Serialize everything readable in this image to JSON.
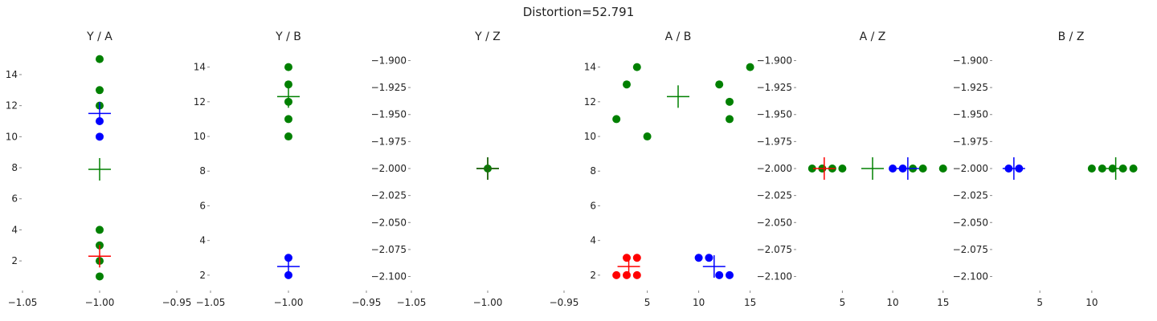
{
  "figure": {
    "title": "Distortion=52.791"
  },
  "chart_data": {
    "type": "scatter",
    "title": "Distortion=52.791",
    "grid": false,
    "legend": "none",
    "colors": {
      "red": "#ff0000",
      "blue": "#0000ff",
      "green": "#008000"
    },
    "panels": [
      {
        "title": "Y / A",
        "xlim": [
          -1.05,
          -0.95
        ],
        "ylim": [
          0.3,
          15.6
        ],
        "xticks": [
          -1.05,
          -1.0,
          -0.95
        ],
        "xtick_labels": [
          "−1.05",
          "−1.00",
          "−0.95"
        ],
        "yticks": [
          2,
          4,
          6,
          8,
          10,
          12,
          14
        ],
        "ytick_labels": [
          "2",
          "4",
          "6",
          "8",
          "10",
          "12",
          "14"
        ],
        "points": [
          {
            "x": -1.0,
            "y": 15,
            "color": "green"
          },
          {
            "x": -1.0,
            "y": 13,
            "color": "green"
          },
          {
            "x": -1.0,
            "y": 12,
            "color": "green"
          },
          {
            "x": -1.0,
            "y": 4,
            "color": "green"
          },
          {
            "x": -1.0,
            "y": 3,
            "color": "green"
          },
          {
            "x": -1.0,
            "y": 2,
            "color": "green"
          },
          {
            "x": -1.0,
            "y": 1,
            "color": "green"
          },
          {
            "x": -1.0,
            "y": 11,
            "color": "blue"
          },
          {
            "x": -1.0,
            "y": 10,
            "color": "blue"
          }
        ],
        "centroids": [
          {
            "x": -1.0,
            "y": 11.5,
            "color": "blue"
          },
          {
            "x": -1.0,
            "y": 7.9,
            "color": "green"
          },
          {
            "x": -1.0,
            "y": 2.3,
            "color": "red"
          }
        ]
      },
      {
        "title": "Y / B",
        "xlim": [
          -1.05,
          -0.95
        ],
        "ylim": [
          1.3,
          15.0
        ],
        "xticks": [
          -1.05,
          -1.0,
          -0.95
        ],
        "xtick_labels": [
          "−1.05",
          "−1.00",
          "−0.95"
        ],
        "yticks": [
          2,
          4,
          6,
          8,
          10,
          12,
          14
        ],
        "ytick_labels": [
          "2",
          "4",
          "6",
          "8",
          "10",
          "12",
          "14"
        ],
        "points": [
          {
            "x": -1.0,
            "y": 14,
            "color": "green"
          },
          {
            "x": -1.0,
            "y": 13,
            "color": "green"
          },
          {
            "x": -1.0,
            "y": 12,
            "color": "green"
          },
          {
            "x": -1.0,
            "y": 11,
            "color": "green"
          },
          {
            "x": -1.0,
            "y": 10,
            "color": "green"
          },
          {
            "x": -1.0,
            "y": 3,
            "color": "blue"
          },
          {
            "x": -1.0,
            "y": 2,
            "color": "blue"
          }
        ],
        "centroids": [
          {
            "x": -1.0,
            "y": 12.3,
            "color": "green"
          },
          {
            "x": -1.0,
            "y": 2.5,
            "color": "blue"
          }
        ]
      },
      {
        "title": "Y / Z",
        "xlim": [
          -1.05,
          -0.95
        ],
        "ylim": [
          -2.11,
          -1.89
        ],
        "xticks": [
          -1.05,
          -1.0,
          -0.95
        ],
        "xtick_labels": [
          "−1.05",
          "−1.00",
          "−0.95"
        ],
        "yticks": [
          -1.9,
          -1.925,
          -1.95,
          -1.975,
          -2.0,
          -2.025,
          -2.05,
          -2.075,
          -2.1
        ],
        "ytick_labels": [
          "−1.900",
          "−1.925",
          "−1.950",
          "−1.975",
          "−2.000",
          "−2.025",
          "−2.050",
          "−2.075",
          "−2.100"
        ],
        "points": [
          {
            "x": -1.0,
            "y": -2.0,
            "color": "green"
          }
        ],
        "centroids": [
          {
            "x": -1.0,
            "y": -2.0,
            "color": "blue"
          },
          {
            "x": -1.0,
            "y": -2.0,
            "color": "red"
          },
          {
            "x": -1.0,
            "y": -2.0,
            "color": "green"
          }
        ]
      },
      {
        "title": "A / B",
        "xlim": [
          0.5,
          15.5
        ],
        "ylim": [
          1.3,
          15.0
        ],
        "xticks": [
          5,
          10,
          15
        ],
        "xtick_labels": [
          "5",
          "10",
          "15"
        ],
        "yticks": [
          2,
          4,
          6,
          8,
          10,
          12,
          14
        ],
        "ytick_labels": [
          "2",
          "4",
          "6",
          "8",
          "10",
          "12",
          "14"
        ],
        "points": [
          {
            "x": 2,
            "y": 11,
            "color": "green"
          },
          {
            "x": 3,
            "y": 13,
            "color": "green"
          },
          {
            "x": 4,
            "y": 14,
            "color": "green"
          },
          {
            "x": 5,
            "y": 10,
            "color": "green"
          },
          {
            "x": 12,
            "y": 13,
            "color": "green"
          },
          {
            "x": 13,
            "y": 12,
            "color": "green"
          },
          {
            "x": 13,
            "y": 11,
            "color": "green"
          },
          {
            "x": 15,
            "y": 14,
            "color": "green"
          },
          {
            "x": 2,
            "y": 2,
            "color": "red"
          },
          {
            "x": 3,
            "y": 3,
            "color": "red"
          },
          {
            "x": 3,
            "y": 2,
            "color": "red"
          },
          {
            "x": 4,
            "y": 3,
            "color": "red"
          },
          {
            "x": 4,
            "y": 2,
            "color": "red"
          },
          {
            "x": 10,
            "y": 3,
            "color": "blue"
          },
          {
            "x": 11,
            "y": 3,
            "color": "blue"
          },
          {
            "x": 12,
            "y": 2,
            "color": "blue"
          },
          {
            "x": 13,
            "y": 2,
            "color": "blue"
          }
        ],
        "centroids": [
          {
            "x": 8.0,
            "y": 12.3,
            "color": "green"
          },
          {
            "x": 3.2,
            "y": 2.5,
            "color": "red"
          },
          {
            "x": 11.5,
            "y": 2.5,
            "color": "blue"
          }
        ]
      },
      {
        "title": "A / Z",
        "xlim": [
          0.5,
          15.5
        ],
        "ylim": [
          -2.11,
          -1.89
        ],
        "xticks": [
          5,
          10,
          15
        ],
        "xtick_labels": [
          "5",
          "10",
          "15"
        ],
        "yticks": [
          -1.9,
          -1.925,
          -1.95,
          -1.975,
          -2.0,
          -2.025,
          -2.05,
          -2.075,
          -2.1
        ],
        "ytick_labels": [
          "−1.900",
          "−1.925",
          "−1.950",
          "−1.975",
          "−2.000",
          "−2.025",
          "−2.050",
          "−2.075",
          "−2.100"
        ],
        "points": [
          {
            "x": 2,
            "y": -2.0,
            "color": "green"
          },
          {
            "x": 3,
            "y": -2.0,
            "color": "green"
          },
          {
            "x": 4,
            "y": -2.0,
            "color": "green"
          },
          {
            "x": 5,
            "y": -2.0,
            "color": "green"
          },
          {
            "x": 10,
            "y": -2.0,
            "color": "blue"
          },
          {
            "x": 11,
            "y": -2.0,
            "color": "blue"
          },
          {
            "x": 12,
            "y": -2.0,
            "color": "green"
          },
          {
            "x": 13,
            "y": -2.0,
            "color": "green"
          },
          {
            "x": 15,
            "y": -2.0,
            "color": "green"
          }
        ],
        "centroids": [
          {
            "x": 3.2,
            "y": -2.0,
            "color": "red"
          },
          {
            "x": 8.0,
            "y": -2.0,
            "color": "green"
          },
          {
            "x": 11.5,
            "y": -2.0,
            "color": "blue"
          }
        ]
      },
      {
        "title": "B / Z",
        "xlim": [
          0.5,
          15.5
        ],
        "ylim": [
          -2.11,
          -1.89
        ],
        "xticks": [
          5,
          10
        ],
        "xtick_labels": [
          "5",
          "10"
        ],
        "yticks": [
          -1.9,
          -1.925,
          -1.95,
          -1.975,
          -2.0,
          -2.025,
          -2.05,
          -2.075,
          -2.1
        ],
        "ytick_labels": [
          "−1.900",
          "−1.925",
          "−1.950",
          "−1.975",
          "−2.000",
          "−2.025",
          "−2.050",
          "−2.075",
          "−2.100"
        ],
        "points": [
          {
            "x": 2,
            "y": -2.0,
            "color": "blue"
          },
          {
            "x": 3,
            "y": -2.0,
            "color": "blue"
          },
          {
            "x": 10,
            "y": -2.0,
            "color": "green"
          },
          {
            "x": 11,
            "y": -2.0,
            "color": "green"
          },
          {
            "x": 12,
            "y": -2.0,
            "color": "green"
          },
          {
            "x": 13,
            "y": -2.0,
            "color": "green"
          },
          {
            "x": 14,
            "y": -2.0,
            "color": "green"
          }
        ],
        "centroids": [
          {
            "x": 2.5,
            "y": -2.0,
            "color": "blue"
          },
          {
            "x": 12.3,
            "y": -2.0,
            "color": "green"
          }
        ]
      }
    ]
  }
}
